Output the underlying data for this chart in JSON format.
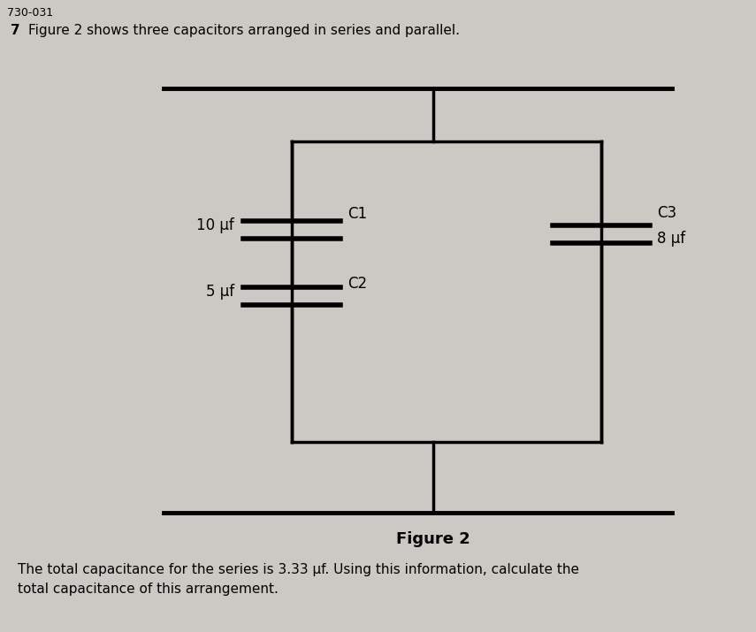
{
  "background_color": "#ccc9c5",
  "header_text": "730-031",
  "question_number": "7",
  "question_text": "Figure 2 shows three capacitors arranged in series and parallel.",
  "figure_label": "Figure 2",
  "footer_text": "The total capacitance for the series is 3.33 μf. Using this information, calculate the\ntotal capacitance of this arrangement.",
  "C1_label": "C1",
  "C1_value": "10 μf",
  "C2_label": "C2",
  "C2_value": "5 μf",
  "C3_label": "C3",
  "C3_value": "8 μf",
  "line_color": "#000000",
  "text_color": "#000000",
  "line_width": 2.5
}
